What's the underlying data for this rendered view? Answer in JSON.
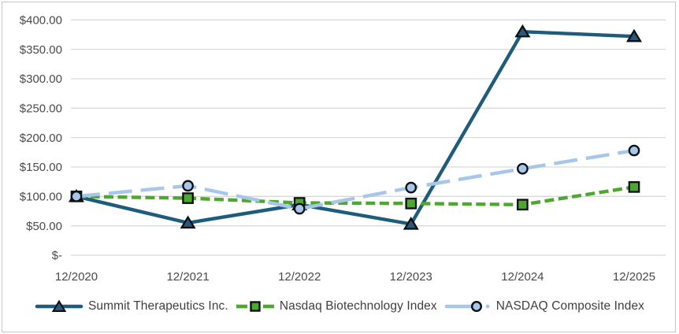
{
  "chart_data": {
    "type": "line",
    "title": "",
    "categories": [
      "12/2020",
      "12/2021",
      "12/2022",
      "12/2023",
      "12/2024",
      "12/2025"
    ],
    "series": [
      {
        "name": "Summit Therapeutics Inc.",
        "values": [
          100,
          55,
          86,
          53,
          380,
          372
        ],
        "color": "#1E5C7C",
        "marker": "triangle",
        "marker_fill": "#2A5878",
        "line_style": "solid"
      },
      {
        "name": "Nasdaq Biotechnology Index",
        "values": [
          100,
          97,
          89,
          88,
          86,
          116
        ],
        "color": "#4EA72E",
        "marker": "square",
        "marker_fill": "#4EA72E",
        "line_style": "dashed"
      },
      {
        "name": "NASDAQ Composite Index",
        "values": [
          100,
          118,
          79,
          115,
          147,
          178
        ],
        "color": "#A8C7E8",
        "marker": "circle",
        "marker_fill": "#A8C7E8",
        "line_style": "long-dash"
      }
    ],
    "x_axis": {
      "tick_labels": [
        "12/2020",
        "12/2021",
        "12/2022",
        "12/2023",
        "12/2024",
        "12/2025"
      ]
    },
    "y_axis": {
      "min": 0,
      "max": 400,
      "tick_interval": 50,
      "tick_labels": [
        "$-",
        "$50.00",
        "$100.00",
        "$150.00",
        "$200.00",
        "$250.00",
        "$300.00",
        "$350.00",
        "$400.00"
      ]
    },
    "legend": {
      "position": "bottom",
      "entries": [
        "Summit Therapeutics Inc.",
        "Nasdaq Biotechnology Index",
        "NASDAQ Composite Index"
      ]
    },
    "grid": {
      "horizontal": true,
      "vertical": false
    },
    "style": {
      "gridline_color": "#D9D9D9",
      "axis_text_color": "#4A4A4A",
      "legend_text_color": "#3F3F3F",
      "marker_outline_color": "#0B1014",
      "background": "#FFFFFF",
      "border_color": "#C8C8C8"
    }
  }
}
